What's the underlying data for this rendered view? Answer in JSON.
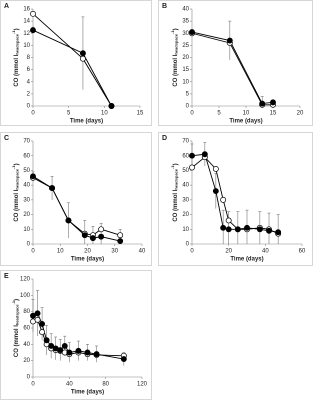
{
  "chart_data": [
    {
      "type": "line",
      "panel": "A",
      "xlabel": "Time (days)",
      "ylabel": [
        "CO (mmol l",
        "headspace",
        "-1",
        ")"
      ],
      "xlim": [
        0,
        15
      ],
      "xticks": [
        0,
        5,
        10,
        15
      ],
      "ylim": [
        0,
        16
      ],
      "yticks": [
        0,
        2,
        4,
        6,
        8,
        10,
        12,
        14,
        16
      ],
      "x": [
        0,
        7,
        11
      ],
      "series": [
        {
          "color": "#000000",
          "values": [
            12.5,
            8.7,
            0
          ],
          "errors": [
            0.5,
            6,
            0.2
          ]
        },
        {
          "color": "#ffffff",
          "values": [
            15.2,
            7.8,
            0
          ]
        }
      ]
    },
    {
      "type": "line",
      "panel": "B",
      "xlabel": "Time (days)",
      "ylabel": [
        "CO (mmol l",
        "headspace",
        "-1",
        ")"
      ],
      "xlim": [
        0,
        20
      ],
      "xticks": [
        0,
        5,
        10,
        15,
        20
      ],
      "ylim": [
        0,
        40
      ],
      "yticks": [
        0,
        5,
        10,
        15,
        20,
        25,
        30,
        35,
        40
      ],
      "x": [
        0,
        7,
        13,
        15
      ],
      "series": [
        {
          "color": "#000000",
          "values": [
            30.5,
            27,
            1,
            1.5
          ],
          "errors": [
            1,
            8,
            3,
            1
          ]
        },
        {
          "color": "#ffffff",
          "values": [
            30,
            26,
            0.5,
            0.5
          ]
        }
      ]
    },
    {
      "type": "line",
      "panel": "C",
      "xlabel": "Time (days)",
      "ylabel": [
        "CO (mmol l",
        "headspace",
        "-1",
        ")"
      ],
      "xlim": [
        0,
        40
      ],
      "xticks": [
        0,
        10,
        20,
        30,
        40
      ],
      "ylim": [
        0,
        70
      ],
      "yticks": [
        0,
        10,
        20,
        30,
        40,
        50,
        60,
        70
      ],
      "x": [
        0,
        7,
        13,
        19,
        22,
        25,
        32
      ],
      "series": [
        {
          "color": "#000000",
          "values": [
            46,
            38,
            16,
            6,
            4,
            5,
            2
          ],
          "errors": [
            3,
            8,
            12,
            10,
            8,
            9,
            8
          ]
        },
        {
          "color": "#ffffff",
          "values": [
            45,
            38,
            16,
            7,
            6,
            10,
            6
          ]
        }
      ]
    },
    {
      "type": "line",
      "panel": "D",
      "xlabel": "Time (days)",
      "ylabel": [
        "CO (mmol l",
        "headspace",
        "-1",
        ")"
      ],
      "xlim": [
        0,
        60
      ],
      "xticks": [
        0,
        20,
        40,
        60
      ],
      "ylim": [
        0,
        70
      ],
      "yticks": [
        0,
        10,
        20,
        30,
        40,
        50,
        60,
        70
      ],
      "x": [
        0,
        7,
        13,
        17,
        20,
        25,
        30,
        37,
        42,
        47
      ],
      "series": [
        {
          "color": "#000000",
          "values": [
            60,
            61,
            36,
            11,
            10,
            10,
            11,
            10,
            9,
            8
          ],
          "errors": [
            8,
            8,
            12,
            12,
            12,
            12,
            12,
            12,
            12,
            12
          ]
        },
        {
          "color": "#ffffff",
          "values": [
            52,
            59,
            51,
            30,
            16,
            10,
            10,
            11,
            10,
            7
          ]
        }
      ]
    },
    {
      "type": "line",
      "panel": "E",
      "xlabel": "Time (days)",
      "ylabel": [
        "CO (mmol l",
        "headspace",
        "-1",
        ")"
      ],
      "xlim": [
        0,
        120
      ],
      "xticks": [
        0,
        40,
        80,
        120
      ],
      "ylim": [
        0,
        120
      ],
      "yticks": [
        0,
        20,
        40,
        60,
        80,
        100,
        120
      ],
      "x": [
        0,
        5,
        10,
        15,
        20,
        25,
        30,
        35,
        40,
        50,
        60,
        70,
        100
      ],
      "series": [
        {
          "color": "#000000",
          "values": [
            75,
            78,
            65,
            45,
            38,
            35,
            33,
            38,
            30,
            32,
            30,
            28,
            22
          ],
          "errors": [
            20,
            28,
            20,
            18,
            15,
            14,
            13,
            12,
            12,
            12,
            10,
            10,
            8
          ]
        },
        {
          "color": "#ffffff",
          "values": [
            68,
            70,
            55,
            40,
            35,
            33,
            32,
            30,
            28,
            30,
            28,
            27,
            26
          ]
        }
      ]
    }
  ]
}
